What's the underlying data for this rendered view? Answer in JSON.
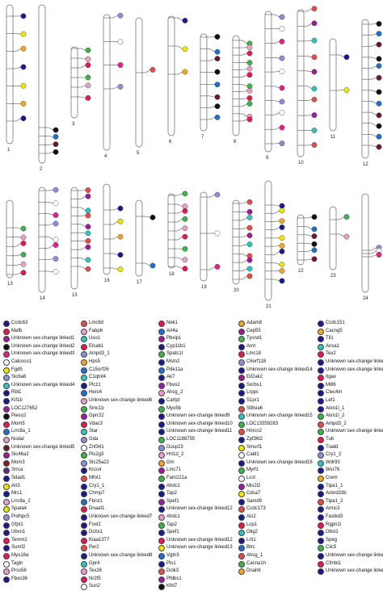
{
  "chromosome_labels": [
    "1",
    "2",
    "3",
    "4",
    "5",
    "6",
    "7",
    "8",
    "9",
    "10",
    "11",
    "12",
    "13",
    "14",
    "15",
    "16",
    "17",
    "18",
    "19",
    "20",
    "21",
    "22",
    "23",
    "24"
  ],
  "legend": {
    "columns": [
      [
        {
          "label": "Ccdc63",
          "color": "#1a1a8c"
        },
        {
          "label": "Mafb",
          "color": "#e6194b"
        },
        {
          "label": "Unknown sex-change linked1",
          "color": "#9b1d9b"
        },
        {
          "label": "Unknown sex-change linked2",
          "color": "#111111"
        },
        {
          "label": "Unknown sex-change linked3",
          "color": "#e91e8c"
        },
        {
          "label": "Calcoco1",
          "color": "#ffffff"
        },
        {
          "label": "Fgd5",
          "color": "#f2e600"
        },
        {
          "label": "Slc6a6",
          "color": "#8a8fd6"
        },
        {
          "label": "Unknown sex-change linked4",
          "color": "#2ec4c4"
        },
        {
          "label": "Rbl1",
          "color": "#1a1a8c"
        },
        {
          "label": "Kif1b",
          "color": "#1a1a8c"
        },
        {
          "label": "LOC127652",
          "color": "#9b1d9b"
        },
        {
          "label": "Pieso2",
          "color": "#111111"
        },
        {
          "label": "Mom5",
          "color": "#e6194b"
        },
        {
          "label": "Lrrc8a_1",
          "color": "#1f6fd1"
        },
        {
          "label": "Nodal",
          "color": "#e8a0c8"
        },
        {
          "label": "Unknown sex-change linked5",
          "color": "#6b1a2e"
        },
        {
          "label": "Slc46a2",
          "color": "#9b1d9b"
        },
        {
          "label": "Mom3",
          "color": "#8b1a1a"
        },
        {
          "label": "Srrca",
          "color": "#5a2d82"
        },
        {
          "label": "Sdad1",
          "color": "#1a1a8c"
        },
        {
          "label": "Arl3",
          "color": "#f2e600"
        },
        {
          "label": "Mrc1",
          "color": "#1a1a8c"
        },
        {
          "label": "Lrrc8a_2",
          "color": "#e8a0c8"
        },
        {
          "label": "Spata4",
          "color": "#f2e600"
        },
        {
          "label": "Prdhpc5",
          "color": "#8a8fd6"
        },
        {
          "label": "Gfpt1",
          "color": "#1a1a8c"
        },
        {
          "label": "Ubxn1",
          "color": "#1a1a8c"
        },
        {
          "label": "Temm2",
          "color": "#e6194b"
        },
        {
          "label": "Sumf2",
          "color": "#1a1a8c"
        },
        {
          "label": "Myo18a",
          "color": "#e6194b"
        },
        {
          "label": "Tagln",
          "color": "#ffffff"
        },
        {
          "label": "Prss56",
          "color": "#e8a0c8"
        },
        {
          "label": "Fbxo36",
          "color": "#1a1a8c"
        }
      ],
      [
        {
          "label": "Lmc8d",
          "color": "#e64b4b"
        },
        {
          "label": "Fabp6",
          "color": "#e8a0c8"
        },
        {
          "label": "Uso1",
          "color": "#2ec4c4"
        },
        {
          "label": "Elcab1",
          "color": "#e6194b"
        },
        {
          "label": "Ampd3_1",
          "color": "#8a8fd6"
        },
        {
          "label": "Hps5",
          "color": "#f5a623"
        },
        {
          "label": "C15orf26",
          "color": "#1f6fd1"
        },
        {
          "label": "C1qtnf4",
          "color": "#2ec4c4"
        },
        {
          "label": "Plcz1",
          "color": "#1a1a8c"
        },
        {
          "label": "Herc4",
          "color": "#1f6fd1"
        },
        {
          "label": "Unknown sex-change linked6",
          "color": "#e8a0c8"
        },
        {
          "label": "Smc1b",
          "color": "#3cb44b"
        },
        {
          "label": "Gprr22",
          "color": "#9b1d9b"
        },
        {
          "label": "Vdac3",
          "color": "#e6194b"
        },
        {
          "label": "Star",
          "color": "#2ec4c4"
        },
        {
          "label": "Gda",
          "color": "#8a8fd6"
        },
        {
          "label": "Znf341",
          "color": "#ffffff"
        },
        {
          "label": "Pls2g3",
          "color": "#3cb44b"
        },
        {
          "label": "Slc25a22",
          "color": "#8a8fd6"
        },
        {
          "label": "Krcc4",
          "color": "#1a1a8c"
        },
        {
          "label": "Mfol1",
          "color": "#e64b4b"
        },
        {
          "label": "Cry1_1",
          "color": "#1a1a8c"
        },
        {
          "label": "Chmp7",
          "color": "#1a1a8c"
        },
        {
          "label": "Fbrsl1",
          "color": "#1f6fd1"
        },
        {
          "label": "Dnaaf1",
          "color": "#e6194b"
        },
        {
          "label": "Unknown sex-change linked7",
          "color": "#1a1a8c"
        },
        {
          "label": "Foxl2",
          "color": "#1a1a8c"
        },
        {
          "label": "Dchs1",
          "color": "#1a1a8c"
        },
        {
          "label": "Kiaa1377",
          "color": "#e6194b"
        },
        {
          "label": "Per2",
          "color": "#e64b4b"
        },
        {
          "label": "Unknown sex-change linked8",
          "color": "#1a1a8c"
        },
        {
          "label": "Gpr4",
          "color": "#2ec4c4"
        },
        {
          "label": "Tex26",
          "color": "#e8a0c8"
        },
        {
          "label": "Nr2f5",
          "color": "#e6194b"
        },
        {
          "label": "Sun2",
          "color": "#ffffff"
        }
      ],
      [
        {
          "label": "Nek1",
          "color": "#e6194b"
        },
        {
          "label": "Arl4a",
          "color": "#1f6fd1"
        },
        {
          "label": "Pbxip1",
          "color": "#9b1d9b"
        },
        {
          "label": "Cyp11b1",
          "color": "#1a1a8c"
        },
        {
          "label": "Spatc1l",
          "color": "#3cb44b"
        },
        {
          "label": "Mstn2",
          "color": "#1a1a8c"
        },
        {
          "label": "Pde11a",
          "color": "#1f6fd1"
        },
        {
          "label": "Ak7",
          "color": "#1a1a8c"
        },
        {
          "label": "Fbvo2",
          "color": "#9b1d9b"
        },
        {
          "label": "Ahsg_2",
          "color": "#e8a0c8"
        },
        {
          "label": "Cartpt",
          "color": "#1a1a8c"
        },
        {
          "label": "Myo5b",
          "color": "#3cb44b"
        },
        {
          "label": "Unknown sex-change linked9",
          "color": "#1a1a8c"
        },
        {
          "label": "Unknown sex-change linked10",
          "color": "#1a1a8c"
        },
        {
          "label": "Unknown sex-change linked11",
          "color": "#1a1a8c"
        },
        {
          "label": "LOC1188755",
          "color": "#3cb44b"
        },
        {
          "label": "Dusp23",
          "color": "#8a8fd6"
        },
        {
          "label": "Hrt1d_2",
          "color": "#e8a0c8"
        },
        {
          "label": "Gm",
          "color": "#f5a623"
        },
        {
          "label": "Lmc71",
          "color": "#9b1d9b"
        },
        {
          "label": "Fam221a",
          "color": "#3cb44b"
        },
        {
          "label": "Ahdc1",
          "color": "#1a1a8c"
        },
        {
          "label": "Tap2",
          "color": "#1a1a8c"
        },
        {
          "label": "Spef1",
          "color": "#9b1d9b"
        },
        {
          "label": "Unknown sex-change linked12",
          "color": "#1a1a8c"
        },
        {
          "label": "Ahdc1",
          "color": "#e8a0c8"
        },
        {
          "label": "Tap2",
          "color": "#3cb44b"
        },
        {
          "label": "Spef1",
          "color": "#1a1a8c"
        },
        {
          "label": "Unknown sex-change linked12",
          "color": "#e6194b"
        },
        {
          "label": "Unknown sex-change linked13",
          "color": "#f2e600"
        },
        {
          "label": "Vgtn3",
          "color": "#1f6fd1"
        },
        {
          "label": "Pls1",
          "color": "#1a1a8c"
        },
        {
          "label": "Dclk3",
          "color": "#e64b4b"
        },
        {
          "label": "Pfdbs1",
          "color": "#9b1d9b"
        },
        {
          "label": "Klhl7",
          "color": "#111111"
        }
      ],
      [
        {
          "label": "Adam8",
          "color": "#f5a623"
        },
        {
          "label": "Cep55",
          "color": "#9b1d9b"
        },
        {
          "label": "Tysnd1",
          "color": "#3cb44b"
        },
        {
          "label": "Arnt",
          "color": "#1a1a8c"
        },
        {
          "label": "Lmc18",
          "color": "#e6194b"
        },
        {
          "label": "C6orf118",
          "color": "#8a8fd6"
        },
        {
          "label": "Unknown sex-change linked14",
          "color": "#1a1a8c"
        },
        {
          "label": "Eif2ak2",
          "color": "#9b1d9b"
        },
        {
          "label": "Sorbs1",
          "color": "#1a1a8c"
        },
        {
          "label": "Lrppc",
          "color": "#1a1a8c"
        },
        {
          "label": "S1pr1",
          "color": "#1a1a8c"
        },
        {
          "label": "St8sia6",
          "color": "#e64b4b"
        },
        {
          "label": "Unknown sex-change linked15",
          "color": "#2ec4c4"
        },
        {
          "label": "LOC13359283",
          "color": "#3cb44b"
        },
        {
          "label": "Hmcn2",
          "color": "#e64b4b"
        },
        {
          "label": "Zpf36l2",
          "color": "#1a1a8c"
        },
        {
          "label": "Smurf1",
          "color": "#f2e600"
        },
        {
          "label": "Cald1",
          "color": "#ffffff"
        },
        {
          "label": "Unknown sex-change linked16",
          "color": "#1a1a8c"
        },
        {
          "label": "Myrf1",
          "color": "#3cb44b"
        },
        {
          "label": "Lcst",
          "color": "#ffffff"
        },
        {
          "label": "Mis2l2",
          "color": "#9b1d9b"
        },
        {
          "label": "Cdca7",
          "color": "#f2e600"
        },
        {
          "label": "Samd9",
          "color": "#1a1a8c"
        },
        {
          "label": "Ccdc173",
          "color": "#e64b4b"
        },
        {
          "label": "Ais2",
          "color": "#1a1a8c"
        },
        {
          "label": "Lcp1",
          "color": "#e6194b"
        },
        {
          "label": "Olig2",
          "color": "#2ec4c4"
        },
        {
          "label": "Lrit1",
          "color": "#1a1a8c"
        },
        {
          "label": "Btrc",
          "color": "#1f6fd1"
        },
        {
          "label": "Ahsg_1",
          "color": "#e64b4b"
        },
        {
          "label": "Cacna1h",
          "color": "#3cb44b"
        },
        {
          "label": "Dnah6",
          "color": "#f5a623"
        }
      ],
      [
        {
          "label": "Ccdc151",
          "color": "#1a1a8c"
        },
        {
          "label": "Cacng5",
          "color": "#f5a623"
        },
        {
          "label": "Tll1",
          "color": "#1a1a8c"
        },
        {
          "label": "Anxa1",
          "color": "#2ec4c4"
        },
        {
          "label": "Tex2",
          "color": "#e6194b"
        },
        {
          "label": "Unknown sex-change linked17",
          "color": "#1a1a8c"
        },
        {
          "label": "Unknown sex-change linked18",
          "color": "#1a1a8c"
        },
        {
          "label": "Itgax",
          "color": "#e6194b"
        },
        {
          "label": "Mitl6",
          "color": "#1a1a8c"
        },
        {
          "label": "Clec4m",
          "color": "#1a1a8c"
        },
        {
          "label": "Lef1",
          "color": "#1a1a8c"
        },
        {
          "label": "Atxn1l_1",
          "color": "#1a1a8c"
        },
        {
          "label": "Atxn1l_2",
          "color": "#3cb44b"
        },
        {
          "label": "Ampd3_2",
          "color": "#e64b4b"
        },
        {
          "label": "Unknown sex-change linked19",
          "color": "#3cb44b"
        },
        {
          "label": "Tub",
          "color": "#e6194b"
        },
        {
          "label": "Tradd",
          "color": "#1a1a8c"
        },
        {
          "label": "Cry1_2",
          "color": "#8a8fd6"
        },
        {
          "label": "Wdr93",
          "color": "#2ec4c4"
        },
        {
          "label": "Wsr76",
          "color": "#1a1a8c"
        },
        {
          "label": "Crem",
          "color": "#f5a623"
        },
        {
          "label": "Tipa1_1",
          "color": "#1a1a8c"
        },
        {
          "label": "Ankrd33b",
          "color": "#1a1a8c"
        },
        {
          "label": "Tipa1_2",
          "color": "#e64b4b"
        },
        {
          "label": "Armc3",
          "color": "#1a1a8c"
        },
        {
          "label": "Fastkd3",
          "color": "#1a1a8c"
        },
        {
          "label": "Rgpn1l",
          "color": "#e6194b"
        },
        {
          "label": "Obsl1",
          "color": "#1a1a8c"
        },
        {
          "label": "Speg",
          "color": "#1a1a8c"
        },
        {
          "label": "Clic5",
          "color": "#3cb44b"
        },
        {
          "label": "Unknown sex-change linked20",
          "color": "#1a1a8c"
        },
        {
          "label": "Cfmbl1",
          "color": "#e6194b"
        },
        {
          "label": "Unknown sex-change linked21",
          "color": "#1a1a8c"
        }
      ]
    ]
  }
}
